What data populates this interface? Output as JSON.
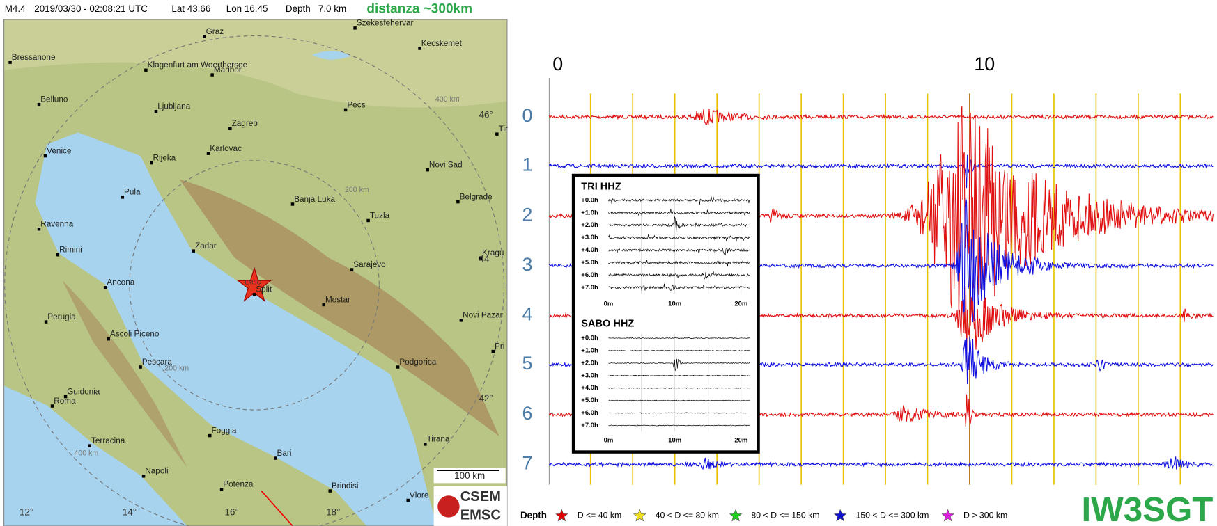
{
  "header": {
    "magnitude": "M4.4",
    "datetime": "2019/03/30 - 02:08:21 UTC",
    "lat": "Lat 43.66",
    "lon": "Lon 16.45",
    "depth": "Depth   7.0 km",
    "distance": "distanza ~300km"
  },
  "map": {
    "cities": [
      "Graz",
      "Szekesfehervar",
      "Kecskemet",
      "Bressanone",
      "Klagenfurt am Woerthersee",
      "Maribor",
      "Belluno",
      "Ljubljana",
      "Pecs",
      "Zagreb",
      "Karlovac",
      "Venice",
      "Rijeka",
      "Novi Sad",
      "Pula",
      "Banja Luka",
      "Belgrade",
      "Tuzla",
      "Ravenna",
      "Zadar",
      "Rimini",
      "Kragu",
      "Sarajevo",
      "Ancona",
      "Split",
      "Mostar",
      "Perugia",
      "Novi Pazar",
      "Ascoli Piceno",
      "Pri",
      "Pescara",
      "Podgorica",
      "Guidonia",
      "Roma",
      "Foggia",
      "Tirana",
      "Terracina",
      "Bari",
      "Napoli",
      "Potenza",
      "Brindisi",
      "Vlore",
      "Tir"
    ],
    "grid_labels": [
      "46°",
      "44",
      "42°",
      "12°",
      "14°",
      "16°",
      "18°"
    ],
    "ring_labels": [
      "400 km",
      "200 km",
      "200 km",
      "400 km"
    ],
    "epicenter": "EMSC",
    "scale": "100 km",
    "logo": [
      "CSEM",
      "EMSC"
    ]
  },
  "seismogram": {
    "minute_labels": [
      "0",
      "10"
    ],
    "hour_rows": [
      "0",
      "1",
      "2",
      "3",
      "4",
      "5",
      "6",
      "7"
    ]
  },
  "insets": [
    {
      "title": "TRI HHZ",
      "hours": [
        "+0.0h",
        "+1.0h",
        "+2.0h",
        "+3.0h",
        "+4.0h",
        "+5.0h",
        "+6.0h",
        "+7.0h"
      ],
      "minutes": [
        "0m",
        "10m",
        "20m"
      ]
    },
    {
      "title": "SABO HHZ",
      "hours": [
        "+0.0h",
        "+1.0h",
        "+2.0h",
        "+3.0h",
        "+4.0h",
        "+5.0h",
        "+6.0h",
        "+7.0h"
      ],
      "minutes": [
        "0m",
        "10m",
        "20m"
      ]
    }
  ],
  "legend": {
    "title": "Depth",
    "items": [
      "D <= 40 km",
      "40 < D <= 80 km",
      "80 < D <= 150 km",
      "150 < D <= 300 km",
      "D > 300 km"
    ]
  },
  "callsign": "IW3SGT"
}
